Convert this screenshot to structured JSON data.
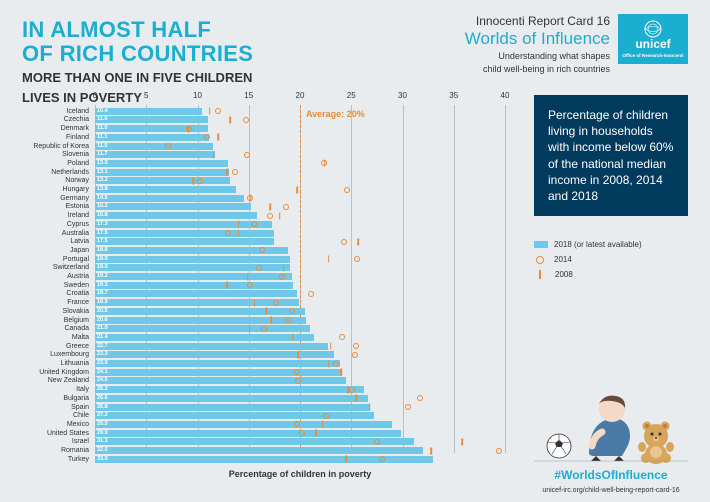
{
  "title": {
    "line1": "IN ALMOST HALF",
    "line2": "OF RICH COUNTRIES"
  },
  "subtitle": {
    "line1": "MORE THAN ONE IN FIVE CHILDREN",
    "line2": "LIVES IN POVERTY"
  },
  "header": {
    "report_name": "Innocenti Report Card 16",
    "report_title": "Worlds of Influence",
    "report_desc1": "Understanding what shapes",
    "report_desc2": "child well-being in rich countries",
    "logo_text": "unicef",
    "logo_sub": "Office of Research-Innocenti"
  },
  "side_box": "Percentage of children living in households with income below 60% of the national median income in 2008, 2014 and 2018",
  "legend": {
    "y2018": "2018 (or latest available)",
    "y2014": "2014",
    "y2008": "2008"
  },
  "hashtag": "#WorldsOfInfluence",
  "url": "unicef-irc.org/child-well-being-report-card-16",
  "chart": {
    "xaxis_title": "Percentage of children in poverty",
    "xmin": 0,
    "xmax": 40,
    "xtick_step": 5,
    "avg_value": 20,
    "avg_label": "Average: 20%",
    "bar_color": "#6fc8e7",
    "marker_color": "#e88b3a",
    "countries": [
      {
        "name": "Iceland",
        "v2018": 10.4,
        "v2014": 12.0,
        "v2008": 11.2
      },
      {
        "name": "Czechia",
        "v2018": 11.0,
        "v2014": 14.7,
        "v2008": 13.2
      },
      {
        "name": "Denmark",
        "v2018": 11.0,
        "v2014": 9.2,
        "v2008": 9.1
      },
      {
        "name": "Finland",
        "v2018": 11.1,
        "v2014": 10.9,
        "v2008": 12.0
      },
      {
        "name": "Republic of Korea",
        "v2018": 11.5,
        "v2014": 7.1
      },
      {
        "name": "Slovenia",
        "v2018": 11.7,
        "v2014": 14.8,
        "v2008": 11.6
      },
      {
        "name": "Poland",
        "v2018": 13.0,
        "v2014": 22.3,
        "v2008": 22.4
      },
      {
        "name": "Netherlands",
        "v2018": 13.1,
        "v2014": 13.7,
        "v2008": 12.9
      },
      {
        "name": "Norway",
        "v2018": 13.2,
        "v2014": 10.2,
        "v2008": 9.6
      },
      {
        "name": "Hungary",
        "v2018": 13.8,
        "v2014": 24.6,
        "v2008": 19.7
      },
      {
        "name": "Germany",
        "v2018": 14.5,
        "v2014": 15.1,
        "v2008": 15.2
      },
      {
        "name": "Estonia",
        "v2018": 15.2,
        "v2014": 18.6,
        "v2008": 17.1
      },
      {
        "name": "Ireland",
        "v2018": 15.8,
        "v2014": 17.1,
        "v2008": 18.0
      },
      {
        "name": "Cyprus",
        "v2018": 17.3,
        "v2014": 15.5,
        "v2008": 14.0
      },
      {
        "name": "Australia",
        "v2018": 17.5,
        "v2014": 13.0,
        "v2008": 14.0
      },
      {
        "name": "Latvia",
        "v2018": 17.5,
        "v2014": 24.3,
        "v2008": 25.7
      },
      {
        "name": "Japan",
        "v2018": 18.8,
        "v2014": 16.3
      },
      {
        "name": "Portugal",
        "v2018": 19.0,
        "v2014": 25.6,
        "v2008": 22.8
      },
      {
        "name": "Switzerland",
        "v2018": 19.0,
        "v2014": 16.0,
        "v2008": 18.4
      },
      {
        "name": "Austria",
        "v2018": 19.2,
        "v2014": 18.2,
        "v2008": 14.9
      },
      {
        "name": "Sweden",
        "v2018": 19.3,
        "v2014": 15.1,
        "v2008": 12.9
      },
      {
        "name": "Croatia",
        "v2018": 19.7,
        "v2014": 21.1
      },
      {
        "name": "France",
        "v2018": 19.9,
        "v2014": 17.7,
        "v2008": 15.6
      },
      {
        "name": "Slovakia",
        "v2018": 20.5,
        "v2014": 19.2,
        "v2008": 16.7
      },
      {
        "name": "Belgium",
        "v2018": 20.6,
        "v2014": 18.8,
        "v2008": 17.2
      },
      {
        "name": "Canada",
        "v2018": 21.0,
        "v2014": 16.5,
        "v2008": 15.1
      },
      {
        "name": "Malta",
        "v2018": 21.4,
        "v2014": 24.1,
        "v2008": 19.3
      },
      {
        "name": "Greece",
        "v2018": 22.7,
        "v2014": 25.5,
        "v2008": 23.0
      },
      {
        "name": "Luxembourg",
        "v2018": 23.3,
        "v2014": 25.4,
        "v2008": 19.8
      },
      {
        "name": "Lithuania",
        "v2018": 23.9,
        "v2014": 23.5,
        "v2008": 22.8
      },
      {
        "name": "United Kingdom",
        "v2018": 24.1,
        "v2014": 19.7,
        "v2008": 24.0
      },
      {
        "name": "New Zealand",
        "v2018": 24.5,
        "v2014": 19.8
      },
      {
        "name": "Italy",
        "v2018": 26.2,
        "v2014": 25.1,
        "v2008": 24.7
      },
      {
        "name": "Bulgaria",
        "v2018": 26.6,
        "v2014": 31.7,
        "v2008": 25.5
      },
      {
        "name": "Spain",
        "v2018": 26.8,
        "v2014": 30.5,
        "v2008": 26.8
      },
      {
        "name": "Chile",
        "v2018": 27.2,
        "v2014": 22.5
      },
      {
        "name": "Mexico",
        "v2018": 29.0,
        "v2014": 19.7,
        "v2008": 22.2
      },
      {
        "name": "United States",
        "v2018": 29.9,
        "v2014": 20.2,
        "v2008": 21.6
      },
      {
        "name": "Israel",
        "v2018": 31.1,
        "v2014": 27.5,
        "v2008": 35.8
      },
      {
        "name": "Romania",
        "v2018": 32.0,
        "v2014": 39.4,
        "v2008": 32.8
      },
      {
        "name": "Turkey",
        "v2018": 33.0,
        "v2014": 28.0,
        "v2008": 24.5
      }
    ]
  }
}
